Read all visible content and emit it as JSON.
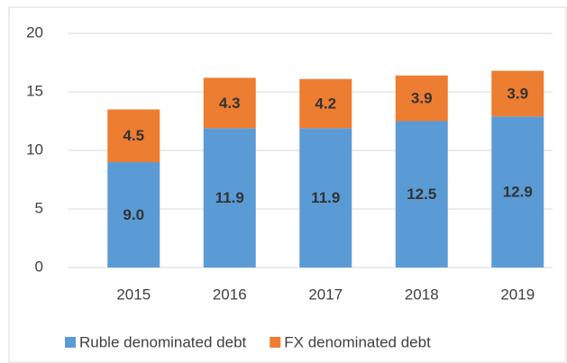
{
  "chart_data": {
    "type": "stacked_bar",
    "categories": [
      "2015",
      "2016",
      "2017",
      "2018",
      "2019"
    ],
    "series": [
      {
        "name": "Ruble denominated debt",
        "color": "#5b9bd5",
        "values": [
          9,
          11.9,
          11.9,
          12.5,
          12.9
        ],
        "value_labels": [
          "9.0",
          "11.9",
          "11.9",
          "12.5",
          "12.9"
        ]
      },
      {
        "name": "FX denominated debt",
        "color": "#ed7d31",
        "values": [
          4.5,
          4.3,
          4.2,
          3.9,
          3.9
        ],
        "value_labels": [
          "4.5",
          "4.3",
          "4.2",
          "3.9",
          "3.9"
        ]
      }
    ],
    "ylim": [
      0,
      20
    ],
    "yticks": [
      0,
      5,
      10,
      15,
      20
    ],
    "grid": true,
    "legend": "bottom"
  }
}
